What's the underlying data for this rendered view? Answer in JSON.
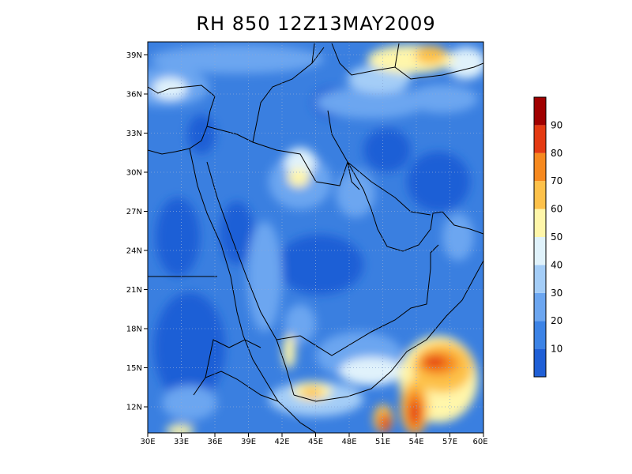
{
  "title": "RH 850 12Z13MAY2009",
  "map": {
    "lon_range": [
      30,
      60
    ],
    "lat_range": [
      10,
      40
    ],
    "lon_ticks": [
      "30E",
      "33E",
      "36E",
      "39E",
      "42E",
      "45E",
      "48E",
      "51E",
      "54E",
      "57E",
      "60E"
    ],
    "lat_ticks": [
      "39N",
      "36N",
      "33N",
      "30N",
      "27N",
      "24N",
      "21N",
      "18N",
      "15N",
      "12N"
    ],
    "background_color": "#3a7fe0"
  },
  "colorbar": {
    "labels": [
      "10",
      "20",
      "30",
      "40",
      "50",
      "60",
      "70",
      "80",
      "90"
    ],
    "colors": [
      "#1f5fd6",
      "#3c83e6",
      "#6ca6f0",
      "#a4cdf7",
      "#e0f2fb",
      "#fff6aa",
      "#fdc14a",
      "#f6891f",
      "#e43a12",
      "#a00000"
    ]
  }
}
